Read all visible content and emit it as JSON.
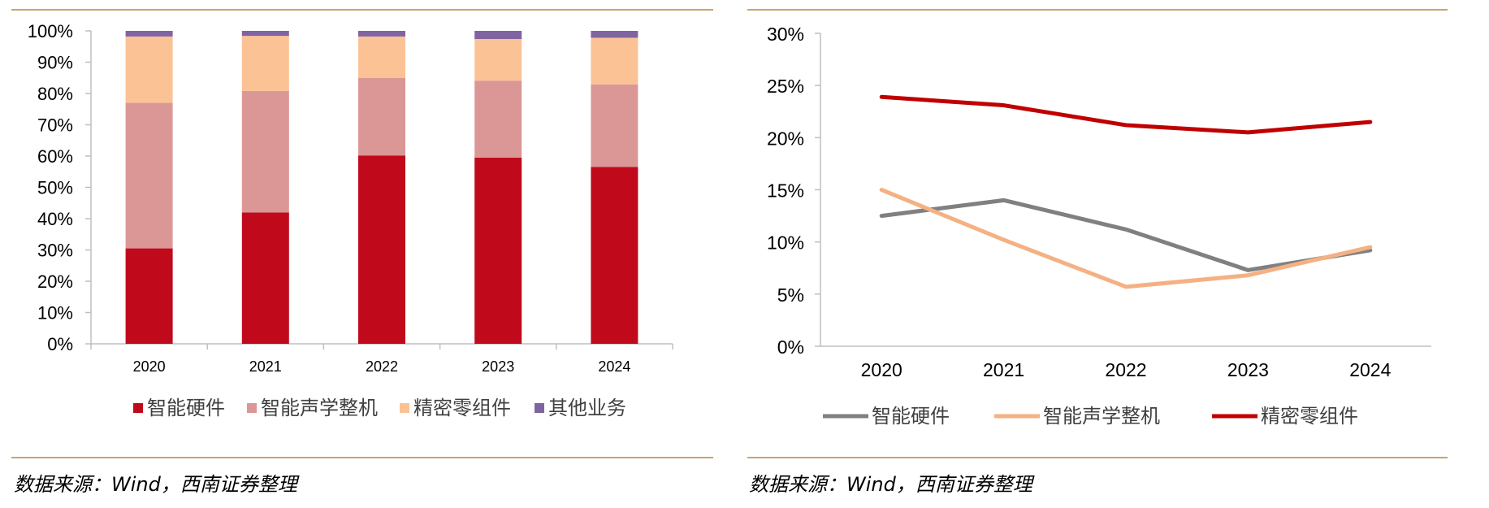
{
  "colors": {
    "rule": "#C9A46B",
    "axis": "#BFBFBF",
    "hardware": "#C00A1C",
    "acoustic": "#DB9796",
    "precision_bar": "#FBC295",
    "other": "#8064A2",
    "line_hardware": "#808080",
    "line_acoustic": "#F4B183",
    "line_precision": "#C00000"
  },
  "source_left": "数据来源：Wind，西南证券整理",
  "source_right": "数据来源：Wind，西南证券整理",
  "chart_data": [
    {
      "type": "bar",
      "stacked": true,
      "categories": [
        "2020",
        "2021",
        "2022",
        "2023",
        "2024"
      ],
      "series": [
        {
          "name": "智能硬件",
          "values": [
            30.5,
            42.0,
            60.2,
            59.5,
            56.5
          ]
        },
        {
          "name": "智能声学整机",
          "values": [
            46.5,
            38.8,
            24.8,
            24.6,
            26.4
          ]
        },
        {
          "name": "精密零组件",
          "values": [
            21.2,
            17.6,
            13.2,
            13.3,
            14.9
          ]
        },
        {
          "name": "其他业务",
          "values": [
            1.8,
            1.6,
            1.8,
            2.6,
            2.2
          ]
        }
      ],
      "yticks": [
        "0%",
        "10%",
        "20%",
        "30%",
        "40%",
        "50%",
        "60%",
        "70%",
        "80%",
        "90%",
        "100%"
      ],
      "ylim": [
        0,
        100
      ],
      "legend_position": "bottom"
    },
    {
      "type": "line",
      "categories": [
        "2020",
        "2021",
        "2022",
        "2023",
        "2024"
      ],
      "series": [
        {
          "name": "智能硬件",
          "values": [
            12.5,
            14.0,
            11.2,
            7.3,
            9.2
          ]
        },
        {
          "name": "智能声学整机",
          "values": [
            15.0,
            10.2,
            5.7,
            6.8,
            9.5
          ]
        },
        {
          "name": "精密零组件",
          "values": [
            23.9,
            23.1,
            21.2,
            20.5,
            21.5
          ]
        }
      ],
      "yticks": [
        "0%",
        "5%",
        "10%",
        "15%",
        "20%",
        "25%",
        "30%"
      ],
      "ylim": [
        0,
        30
      ],
      "legend_position": "bottom"
    }
  ]
}
